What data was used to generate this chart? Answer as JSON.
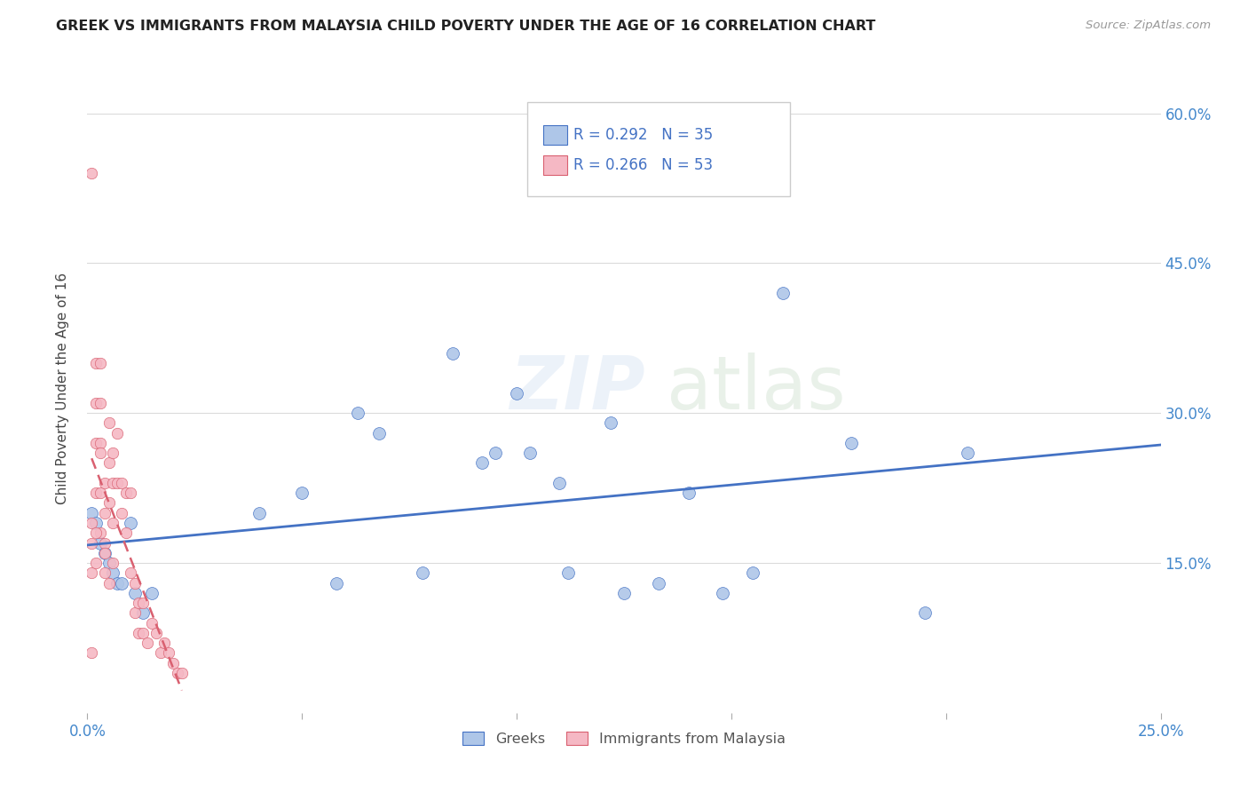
{
  "title": "GREEK VS IMMIGRANTS FROM MALAYSIA CHILD POVERTY UNDER THE AGE OF 16 CORRELATION CHART",
  "source": "Source: ZipAtlas.com",
  "ylabel": "Child Poverty Under the Age of 16",
  "xlim": [
    0.0,
    0.25
  ],
  "ylim": [
    0.0,
    0.65
  ],
  "greek_R": 0.292,
  "greek_N": 35,
  "malaysia_R": 0.266,
  "malaysia_N": 53,
  "greek_color": "#aec6e8",
  "malaysia_color": "#f5b8c4",
  "greek_line_color": "#4472c4",
  "malaysia_line_color": "#d96070",
  "greek_x": [
    0.001,
    0.002,
    0.003,
    0.004,
    0.005,
    0.006,
    0.007,
    0.008,
    0.01,
    0.011,
    0.013,
    0.015,
    0.04,
    0.05,
    0.063,
    0.068,
    0.085,
    0.092,
    0.1,
    0.103,
    0.112,
    0.122,
    0.133,
    0.148,
    0.155,
    0.162,
    0.178,
    0.195,
    0.205,
    0.095,
    0.078,
    0.058,
    0.11,
    0.125,
    0.14
  ],
  "greek_y": [
    0.2,
    0.19,
    0.17,
    0.16,
    0.15,
    0.14,
    0.13,
    0.13,
    0.19,
    0.12,
    0.1,
    0.12,
    0.2,
    0.22,
    0.3,
    0.28,
    0.36,
    0.25,
    0.32,
    0.26,
    0.14,
    0.29,
    0.13,
    0.12,
    0.14,
    0.42,
    0.27,
    0.1,
    0.26,
    0.26,
    0.14,
    0.13,
    0.23,
    0.12,
    0.22
  ],
  "malaysia_x": [
    0.001,
    0.001,
    0.001,
    0.001,
    0.002,
    0.002,
    0.002,
    0.002,
    0.002,
    0.003,
    0.003,
    0.003,
    0.003,
    0.003,
    0.004,
    0.004,
    0.004,
    0.004,
    0.005,
    0.005,
    0.005,
    0.006,
    0.006,
    0.006,
    0.007,
    0.007,
    0.008,
    0.008,
    0.009,
    0.009,
    0.01,
    0.01,
    0.011,
    0.011,
    0.012,
    0.012,
    0.013,
    0.013,
    0.014,
    0.015,
    0.016,
    0.017,
    0.018,
    0.019,
    0.02,
    0.021,
    0.022,
    0.001,
    0.002,
    0.003,
    0.004,
    0.005,
    0.006
  ],
  "malaysia_y": [
    0.19,
    0.17,
    0.14,
    0.06,
    0.35,
    0.31,
    0.27,
    0.22,
    0.15,
    0.35,
    0.31,
    0.27,
    0.22,
    0.18,
    0.23,
    0.2,
    0.17,
    0.14,
    0.29,
    0.25,
    0.21,
    0.26,
    0.23,
    0.19,
    0.28,
    0.23,
    0.23,
    0.2,
    0.22,
    0.18,
    0.22,
    0.14,
    0.13,
    0.1,
    0.11,
    0.08,
    0.11,
    0.08,
    0.07,
    0.09,
    0.08,
    0.06,
    0.07,
    0.06,
    0.05,
    0.04,
    0.04,
    0.54,
    0.18,
    0.26,
    0.16,
    0.13,
    0.15
  ],
  "greek_marker_size": 100,
  "malaysia_marker_size": 80,
  "ytick_positions": [
    0.15,
    0.3,
    0.45,
    0.6
  ],
  "ytick_labels": [
    "15.0%",
    "30.0%",
    "45.0%",
    "60.0%"
  ],
  "xtick_positions": [
    0.0,
    0.25
  ],
  "xtick_labels": [
    "0.0%",
    "25.0%"
  ]
}
